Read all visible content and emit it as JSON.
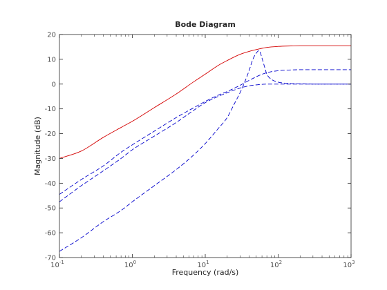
{
  "chart_data": {
    "type": "line",
    "title": "Bode Diagram",
    "xlabel": "Frequency  (rad/s)",
    "ylabel": "Magnitude (dB)",
    "xscale": "log",
    "xlim": [
      0.1,
      1000
    ],
    "ylim": [
      -70,
      20
    ],
    "grid": false,
    "x_ticks": [
      {
        "value": 0.1,
        "base": "10",
        "exp": "-1"
      },
      {
        "value": 1,
        "base": "10",
        "exp": "0"
      },
      {
        "value": 10,
        "base": "10",
        "exp": "1"
      },
      {
        "value": 100,
        "base": "10",
        "exp": "2"
      },
      {
        "value": 1000,
        "base": "10",
        "exp": "3"
      }
    ],
    "y_ticks": [
      20,
      10,
      0,
      -10,
      -20,
      -30,
      -40,
      -50,
      -60,
      -70
    ],
    "series": [
      {
        "color": "#d40000",
        "style": "solid",
        "x": [
          0.1,
          0.2,
          0.4,
          0.7,
          1,
          2,
          4,
          7,
          10,
          15,
          20,
          30,
          40,
          55,
          70,
          100,
          150,
          200,
          300,
          500,
          1000
        ],
        "y": [
          -30,
          -27,
          -21.5,
          -17.5,
          -15,
          -9.5,
          -4,
          1,
          4,
          7.5,
          9.5,
          12,
          13.2,
          14.2,
          14.8,
          15.2,
          15.4,
          15.5,
          15.5,
          15.5,
          15.5
        ]
      },
      {
        "color": "#0000cc",
        "style": "dashed",
        "x": [
          0.1,
          0.2,
          0.4,
          0.7,
          1,
          2,
          4,
          7,
          10,
          15,
          20,
          30,
          40,
          55,
          70,
          100,
          150,
          200,
          300,
          500,
          1000
        ],
        "y": [
          -44.5,
          -38.5,
          -33,
          -27.5,
          -24.5,
          -19,
          -13.5,
          -9.5,
          -7,
          -4.5,
          -3,
          -0.5,
          1.5,
          3.5,
          4.6,
          5.4,
          5.7,
          5.8,
          5.8,
          5.8,
          5.8
        ]
      },
      {
        "color": "#0000cc",
        "style": "dashed",
        "x": [
          0.1,
          0.2,
          0.4,
          0.7,
          1,
          2,
          4,
          7,
          10,
          15,
          20,
          30,
          40,
          55,
          70,
          100,
          150,
          200,
          300,
          500,
          1000
        ],
        "y": [
          -47.5,
          -41,
          -35,
          -30,
          -26.5,
          -21,
          -15.5,
          -10.5,
          -7.5,
          -5,
          -3.5,
          -1.6,
          -0.7,
          -0.2,
          0,
          0,
          0,
          0,
          0,
          0,
          0
        ]
      },
      {
        "color": "#0000cc",
        "style": "dashed",
        "x": [
          0.1,
          0.2,
          0.4,
          0.7,
          1,
          2,
          4,
          7,
          10,
          15,
          20,
          25,
          30,
          35,
          40,
          45,
          50,
          55,
          60,
          65,
          70,
          80,
          100,
          150,
          200,
          300,
          500,
          1000
        ],
        "y": [
          -67.5,
          -62,
          -55.5,
          -51,
          -47.5,
          -41,
          -34.5,
          -28.5,
          -24,
          -18,
          -13.5,
          -8,
          -3.5,
          1,
          5.5,
          10,
          12.5,
          13.5,
          10.5,
          7,
          4,
          2,
          0.8,
          0.2,
          0.1,
          0,
          0,
          0
        ]
      }
    ]
  }
}
